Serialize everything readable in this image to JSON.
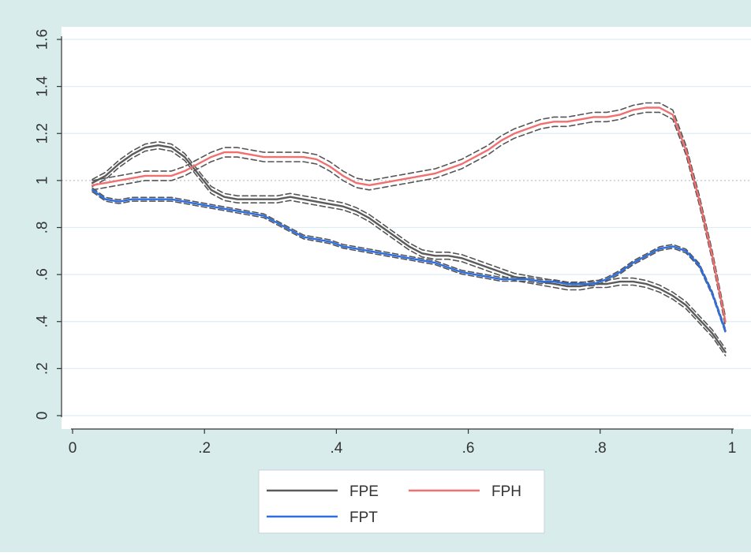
{
  "colors": {
    "outer_bg": "#d8ecec",
    "plot_bg": "#ffffff",
    "grid": "#ddeef2",
    "reference": "#b8c4cc",
    "axis": "#333333",
    "band": "#555555"
  },
  "chart_data": {
    "type": "line",
    "title": "",
    "xlabel": "",
    "ylabel": "",
    "xlim": [
      0,
      1
    ],
    "ylim": [
      0,
      1.6
    ],
    "x_ticks": [
      {
        "value": 0,
        "label": "0"
      },
      {
        "value": 0.2,
        "label": ".2"
      },
      {
        "value": 0.4,
        "label": ".4"
      },
      {
        "value": 0.6,
        "label": ".6"
      },
      {
        "value": 0.8,
        "label": ".8"
      },
      {
        "value": 1,
        "label": "1"
      }
    ],
    "y_ticks": [
      {
        "value": 0,
        "label": "0"
      },
      {
        "value": 0.2,
        "label": ".2"
      },
      {
        "value": 0.4,
        "label": ".4"
      },
      {
        "value": 0.6,
        "label": ".6"
      },
      {
        "value": 0.8,
        "label": ".8"
      },
      {
        "value": 1,
        "label": "1"
      },
      {
        "value": 1.2,
        "label": "1.2"
      },
      {
        "value": 1.4,
        "label": "1.4"
      },
      {
        "value": 1.6,
        "label": "1.6"
      }
    ],
    "grid": true,
    "reference_line": 1,
    "legend": {
      "position": "bottom",
      "columns": 2
    },
    "series": [
      {
        "name": "FPE",
        "color": "#5a5a5a",
        "band_width": 0.015,
        "x": [
          0.03,
          0.05,
          0.07,
          0.09,
          0.11,
          0.13,
          0.15,
          0.17,
          0.19,
          0.21,
          0.23,
          0.25,
          0.27,
          0.29,
          0.31,
          0.33,
          0.35,
          0.37,
          0.39,
          0.41,
          0.43,
          0.45,
          0.47,
          0.49,
          0.51,
          0.53,
          0.55,
          0.57,
          0.59,
          0.61,
          0.63,
          0.65,
          0.67,
          0.69,
          0.71,
          0.73,
          0.75,
          0.77,
          0.79,
          0.81,
          0.83,
          0.85,
          0.87,
          0.89,
          0.91,
          0.93,
          0.95,
          0.97,
          0.99
        ],
        "y": [
          0.99,
          1.02,
          1.07,
          1.11,
          1.14,
          1.15,
          1.14,
          1.1,
          1.03,
          0.96,
          0.93,
          0.92,
          0.92,
          0.92,
          0.92,
          0.93,
          0.92,
          0.91,
          0.9,
          0.89,
          0.87,
          0.84,
          0.8,
          0.76,
          0.72,
          0.69,
          0.68,
          0.68,
          0.67,
          0.65,
          0.63,
          0.61,
          0.59,
          0.58,
          0.57,
          0.56,
          0.55,
          0.55,
          0.56,
          0.56,
          0.57,
          0.57,
          0.56,
          0.54,
          0.51,
          0.47,
          0.41,
          0.35,
          0.27
        ]
      },
      {
        "name": "FPH",
        "color": "#f07070",
        "band_width": 0.02,
        "x": [
          0.03,
          0.05,
          0.07,
          0.09,
          0.11,
          0.13,
          0.15,
          0.17,
          0.19,
          0.21,
          0.23,
          0.25,
          0.27,
          0.29,
          0.31,
          0.33,
          0.35,
          0.37,
          0.39,
          0.41,
          0.43,
          0.45,
          0.47,
          0.49,
          0.51,
          0.53,
          0.55,
          0.57,
          0.59,
          0.61,
          0.63,
          0.65,
          0.67,
          0.69,
          0.71,
          0.73,
          0.75,
          0.77,
          0.79,
          0.81,
          0.83,
          0.85,
          0.87,
          0.89,
          0.91,
          0.93,
          0.95,
          0.97,
          0.99
        ],
        "y": [
          0.98,
          0.99,
          1.0,
          1.01,
          1.02,
          1.02,
          1.02,
          1.04,
          1.07,
          1.1,
          1.12,
          1.12,
          1.11,
          1.1,
          1.1,
          1.1,
          1.1,
          1.09,
          1.06,
          1.02,
          0.99,
          0.98,
          0.99,
          1.0,
          1.01,
          1.02,
          1.03,
          1.05,
          1.07,
          1.1,
          1.13,
          1.17,
          1.2,
          1.22,
          1.24,
          1.25,
          1.25,
          1.26,
          1.27,
          1.27,
          1.28,
          1.3,
          1.31,
          1.31,
          1.28,
          1.13,
          0.92,
          0.68,
          0.4
        ]
      },
      {
        "name": "FPT",
        "color": "#2d6ee0",
        "band_width": 0.008,
        "x": [
          0.03,
          0.05,
          0.07,
          0.09,
          0.11,
          0.13,
          0.15,
          0.17,
          0.19,
          0.21,
          0.23,
          0.25,
          0.27,
          0.29,
          0.31,
          0.33,
          0.35,
          0.37,
          0.39,
          0.41,
          0.43,
          0.45,
          0.47,
          0.49,
          0.51,
          0.53,
          0.55,
          0.57,
          0.59,
          0.61,
          0.63,
          0.65,
          0.67,
          0.69,
          0.71,
          0.73,
          0.75,
          0.77,
          0.79,
          0.81,
          0.83,
          0.85,
          0.87,
          0.89,
          0.91,
          0.93,
          0.95,
          0.97,
          0.99
        ],
        "y": [
          0.96,
          0.92,
          0.91,
          0.92,
          0.92,
          0.92,
          0.92,
          0.91,
          0.9,
          0.89,
          0.88,
          0.87,
          0.86,
          0.85,
          0.82,
          0.79,
          0.76,
          0.75,
          0.74,
          0.72,
          0.71,
          0.7,
          0.69,
          0.68,
          0.67,
          0.66,
          0.65,
          0.63,
          0.61,
          0.6,
          0.59,
          0.58,
          0.58,
          0.58,
          0.57,
          0.57,
          0.56,
          0.56,
          0.56,
          0.58,
          0.61,
          0.65,
          0.68,
          0.71,
          0.72,
          0.7,
          0.64,
          0.52,
          0.36
        ]
      }
    ]
  }
}
